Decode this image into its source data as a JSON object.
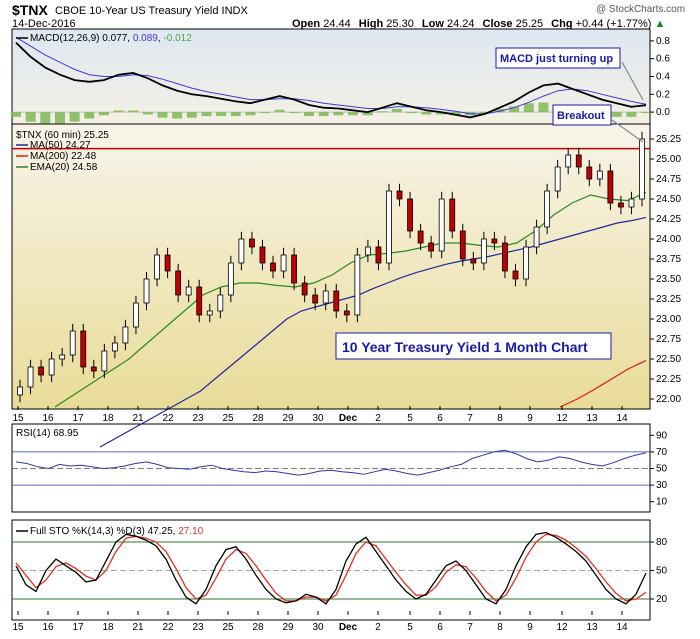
{
  "header": {
    "symbol": "$TNX",
    "name": "CBOE 10-Year US Treasury Yield",
    "exchange": "INDX",
    "date": "14-Dec-2016",
    "watermark": "@ StockCharts.com",
    "open_label": "Open",
    "open": "24.44",
    "high_label": "High",
    "high": "25.30",
    "low_label": "Low",
    "low": "24.24",
    "close_label": "Close",
    "close": "25.25",
    "chg_label": "Chg",
    "chg": "+0.44 (+1.77%)",
    "chg_arrow": "▲"
  },
  "colors": {
    "price_bg_top": "#f7f2e6",
    "price_bg_bottom": "#eadf9c",
    "macd_bg_top": "#dfe8f3",
    "ma50": "#1f2a9a",
    "ma200": "#dd1a10",
    "ema20": "#2a8a1f",
    "macd_line": "#000000",
    "signal_line": "#3a3ad8",
    "histogram": "#7fb855",
    "stoch_k": "#000000",
    "stoch_d": "#e03020",
    "rsi_line": "#2a3aa8",
    "resistance": "#c00000",
    "annot_text": "#1a1aa8"
  },
  "chart_data": [
    {
      "type": "line",
      "panel": "MACD",
      "legend": "MACD(12,26,9) 0.077, 0.089, -0.012",
      "legend_parts": {
        "name": "MACD(12,26,9)",
        "macd": "0.077",
        "signal": "0.089",
        "hist": "-0.012"
      },
      "ylim": [
        -0.1,
        0.9
      ],
      "yticks": [
        "0.8",
        "0.6",
        "0.4",
        "0.2",
        "0.0"
      ],
      "macd": [
        0.78,
        0.62,
        0.5,
        0.42,
        0.36,
        0.34,
        0.36,
        0.42,
        0.44,
        0.38,
        0.3,
        0.24,
        0.2,
        0.18,
        0.15,
        0.12,
        0.1,
        0.14,
        0.18,
        0.14,
        0.08,
        0.05,
        0.04,
        0.02,
        0.0,
        0.05,
        0.1,
        0.06,
        0.02,
        0.0,
        -0.03,
        -0.06,
        -0.02,
        0.05,
        0.12,
        0.22,
        0.3,
        0.32,
        0.26,
        0.2,
        0.14,
        0.1,
        0.06,
        0.077
      ],
      "signal": [
        0.84,
        0.74,
        0.64,
        0.56,
        0.48,
        0.42,
        0.4,
        0.4,
        0.42,
        0.41,
        0.37,
        0.32,
        0.27,
        0.23,
        0.2,
        0.17,
        0.14,
        0.14,
        0.15,
        0.15,
        0.13,
        0.1,
        0.08,
        0.06,
        0.04,
        0.04,
        0.06,
        0.06,
        0.05,
        0.03,
        0.01,
        -0.02,
        -0.02,
        0.01,
        0.05,
        0.11,
        0.18,
        0.24,
        0.26,
        0.24,
        0.2,
        0.16,
        0.12,
        0.089
      ],
      "annotations": [
        {
          "text": "MACD just turning up"
        }
      ]
    },
    {
      "type": "candlestick",
      "panel": "Price",
      "legend": "$TNX (60 min) 25.25",
      "ylim": [
        21.9,
        25.4
      ],
      "yticks": [
        "25.25",
        "25.00",
        "24.75",
        "24.50",
        "24.25",
        "24.00",
        "23.75",
        "23.50",
        "23.25",
        "23.00",
        "22.75",
        "22.50",
        "22.25",
        "22.00"
      ],
      "x_labels": [
        "15",
        "16",
        "17",
        "18",
        "21",
        "22",
        "23",
        "25",
        "28",
        "29",
        "30",
        "Dec",
        "2",
        "5",
        "6",
        "7",
        "8",
        "9",
        "12",
        "13",
        "14"
      ],
      "title": "10 Year Treasury Yield 1 Month Chart",
      "breakout_label": "Breakout",
      "resistance_level": 25.13,
      "closes": [
        22.15,
        22.4,
        22.3,
        22.5,
        22.55,
        22.85,
        22.4,
        22.35,
        22.6,
        22.7,
        22.9,
        23.2,
        23.5,
        23.8,
        23.6,
        23.3,
        23.4,
        23.05,
        23.1,
        23.3,
        23.7,
        24.0,
        23.9,
        23.7,
        23.6,
        23.8,
        23.45,
        23.3,
        23.2,
        23.35,
        23.1,
        23.05,
        23.8,
        23.9,
        23.7,
        24.6,
        24.5,
        24.1,
        23.95,
        23.85,
        24.5,
        24.1,
        23.75,
        23.7,
        24.0,
        23.95,
        23.6,
        23.5,
        23.9,
        24.15,
        24.6,
        24.9,
        25.05,
        24.9,
        24.75,
        24.85,
        24.45,
        24.4,
        24.5,
        25.25
      ],
      "ma50": [
        21.4,
        21.5,
        21.6,
        21.7,
        21.8,
        21.9,
        22.0,
        22.1,
        22.25,
        22.4,
        22.55,
        22.7,
        22.85,
        23.0,
        23.1,
        23.15,
        23.2,
        23.25,
        23.3,
        23.38,
        23.45,
        23.52,
        23.58,
        23.63,
        23.68,
        23.72,
        23.75,
        23.78,
        23.82,
        23.86,
        23.9,
        23.95,
        24.0,
        24.05,
        24.1,
        24.15,
        24.2,
        24.23,
        24.27
      ],
      "ma200": [
        21.9,
        22.0,
        22.12,
        22.25,
        22.38,
        22.48
      ],
      "ema20": [
        21.9,
        22.05,
        22.2,
        22.35,
        22.5,
        22.7,
        22.9,
        23.1,
        23.3,
        23.4,
        23.45,
        23.45,
        23.42,
        23.4,
        23.45,
        23.55,
        23.7,
        23.8,
        23.82,
        23.85,
        23.9,
        23.95,
        23.95,
        23.92,
        23.9,
        23.95,
        24.1,
        24.3,
        24.45,
        24.55,
        24.5,
        24.48,
        24.58
      ],
      "legend_items": [
        {
          "label": "MA(50) 24.27",
          "color": "#1f2a9a"
        },
        {
          "label": "MA(200) 22.48",
          "color": "#dd1a10"
        },
        {
          "label": "EMA(20) 24.58",
          "color": "#2a8a1f"
        }
      ]
    },
    {
      "type": "line",
      "panel": "RSI",
      "legend": "RSI(14) 68.95",
      "ylim": [
        0,
        100
      ],
      "yticks": [
        "90",
        "70",
        "50",
        "30",
        "10"
      ],
      "values": [
        58,
        56,
        52,
        50,
        55,
        53,
        54,
        52,
        50,
        51,
        53,
        56,
        58,
        55,
        51,
        50,
        49,
        52,
        54,
        50,
        48,
        46,
        45,
        47,
        46,
        44,
        42,
        44,
        47,
        48,
        46,
        45,
        43,
        46,
        49,
        47,
        44,
        42,
        45,
        48,
        52,
        55,
        62,
        66,
        70,
        72,
        68,
        62,
        58,
        60,
        64,
        62,
        58,
        55,
        53,
        57,
        62,
        66,
        68.95
      ]
    },
    {
      "type": "line",
      "panel": "Full STO",
      "legend": "Full STO %K(14,3) %D(3) 47.25, 27.10",
      "legend_parts": {
        "name": "Full STO %K(14,3) %D(3)",
        "k": "47.25",
        "d": "27.10"
      },
      "ylim": [
        0,
        100
      ],
      "yticks": [
        "80",
        "50",
        "20"
      ],
      "k": [
        55,
        35,
        28,
        50,
        62,
        55,
        48,
        38,
        40,
        60,
        80,
        88,
        86,
        82,
        76,
        62,
        40,
        22,
        15,
        30,
        55,
        72,
        75,
        62,
        45,
        30,
        20,
        16,
        18,
        25,
        22,
        15,
        30,
        60,
        78,
        85,
        70,
        55,
        40,
        28,
        20,
        25,
        40,
        55,
        60,
        50,
        35,
        20,
        15,
        30,
        55,
        75,
        88,
        90,
        85,
        78,
        70,
        60,
        45,
        30,
        20,
        15,
        25,
        47.25
      ],
      "d": [
        58,
        45,
        32,
        40,
        54,
        58,
        52,
        44,
        40,
        50,
        70,
        84,
        86,
        84,
        80,
        70,
        52,
        32,
        20,
        24,
        42,
        62,
        72,
        68,
        55,
        40,
        26,
        18,
        18,
        22,
        22,
        18,
        24,
        45,
        68,
        80,
        76,
        62,
        48,
        35,
        24,
        24,
        33,
        48,
        56,
        54,
        42,
        28,
        18,
        24,
        42,
        64,
        80,
        88,
        87,
        82,
        74,
        65,
        52,
        38,
        26,
        18,
        20,
        27.1
      ]
    }
  ]
}
